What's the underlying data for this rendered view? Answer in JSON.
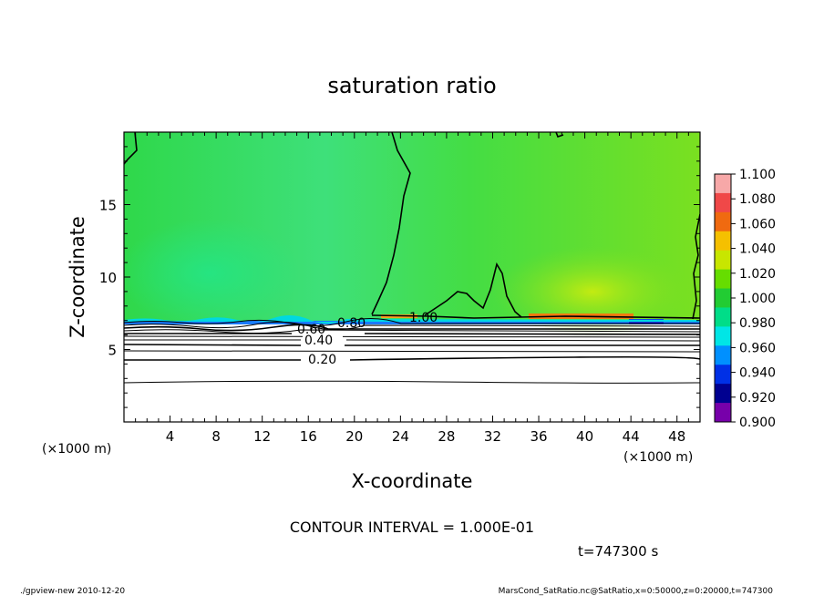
{
  "chart_data": {
    "type": "contour",
    "title": "saturation ratio",
    "xlabel": "X-coordinate",
    "ylabel": "Z-coordinate",
    "x_unit": "(×1000 m)",
    "y_unit": "(×1000 m)",
    "xlim": [
      0,
      50
    ],
    "ylim": [
      0,
      20
    ],
    "xticks": [
      4,
      8,
      12,
      16,
      20,
      24,
      28,
      32,
      36,
      40,
      44,
      48
    ],
    "yticks": [
      5,
      10,
      15
    ],
    "contour_interval_text": "CONTOUR INTERVAL = 1.000E-01",
    "time_text": "t=747300 s",
    "contour_lines": [
      {
        "level": 0.2,
        "label": "0.20",
        "z": 4.3
      },
      {
        "level": 0.4,
        "label": "0.40",
        "z": 5.7
      },
      {
        "level": 0.6,
        "label": "0.60",
        "z": 6.3
      },
      {
        "level": 0.8,
        "label": "0.80",
        "z": 6.8
      },
      {
        "level": 1.0,
        "label": "1.00",
        "z": 7.2
      }
    ],
    "colorbar": {
      "levels": [
        "1.100",
        "1.080",
        "1.060",
        "1.040",
        "1.020",
        "1.000",
        "0.980",
        "0.960",
        "0.940",
        "0.920",
        "0.900"
      ],
      "colors": [
        "#f7a8a8",
        "#f04848",
        "#f06a10",
        "#f5c000",
        "#c8e600",
        "#66dd00",
        "#22cc33",
        "#00dd88",
        "#00e6e6",
        "#0090ff",
        "#0030e6",
        "#000090",
        "#7700aa"
      ]
    }
  },
  "footer": {
    "left": "./gpview-new   2010-12-20",
    "right": "MarsCond_SatRatio.nc@SatRatio,x=0:50000,z=0:20000,t=747300"
  }
}
